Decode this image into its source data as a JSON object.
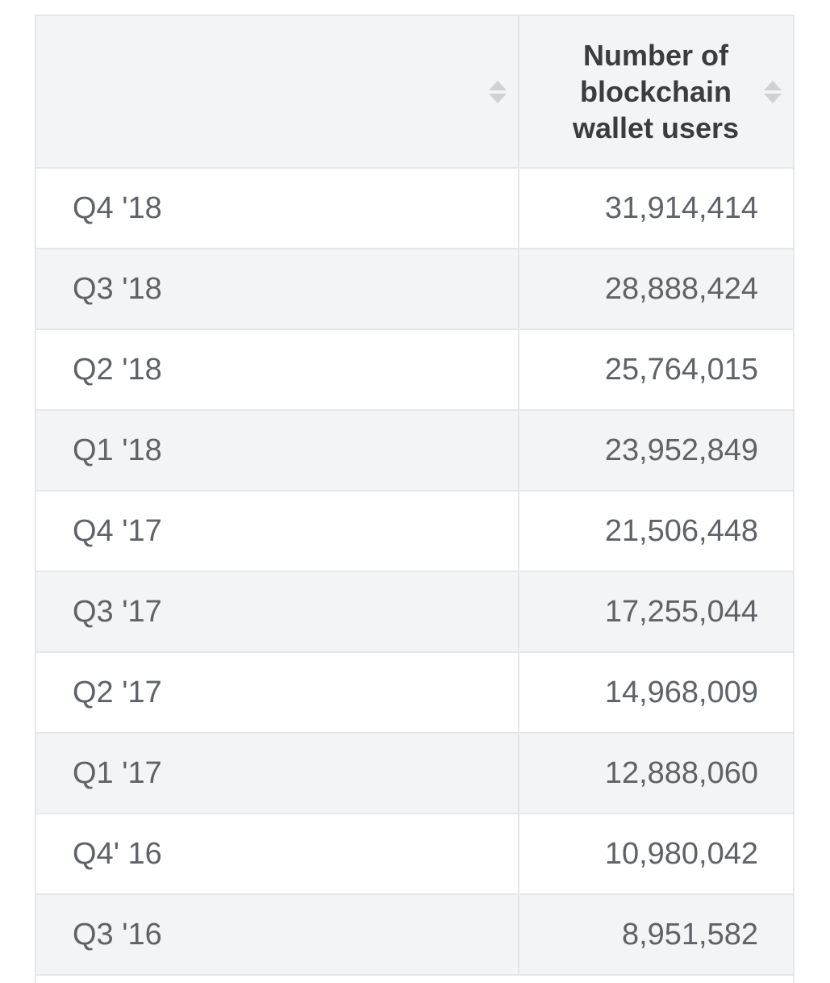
{
  "chart_data": {
    "type": "table",
    "columns": [
      "",
      "Number of blockchain wallet users"
    ],
    "categories": [
      "Q4 '18",
      "Q3 '18",
      "Q2 '18",
      "Q1 '18",
      "Q4 '17",
      "Q3 '17",
      "Q2 '17",
      "Q1 '17",
      "Q4' 16",
      "Q3 '16"
    ],
    "values": [
      31914414,
      28888424,
      25764015,
      23952849,
      21506448,
      17255044,
      14968009,
      12888060,
      10980042,
      8951582
    ],
    "value_labels": [
      "31,914,414",
      "28,888,424",
      "25,764,015",
      "23,952,849",
      "21,506,448",
      "17,255,044",
      "14,968,009",
      "12,888,060",
      "10,980,042",
      "8,951,582"
    ]
  },
  "table": {
    "header": {
      "col1_label": "",
      "col2_label": "Number of blockchain wallet users"
    },
    "colors": {
      "header_bg": "#f3f4f5",
      "row_alt_bg": "#f3f4f5",
      "border": "#e6e7e8",
      "header_text": "#3a3d40",
      "body_text": "#5f6368",
      "sort_icon": "#cfd1d4"
    },
    "icons": {
      "sort": "sort-icon"
    }
  }
}
